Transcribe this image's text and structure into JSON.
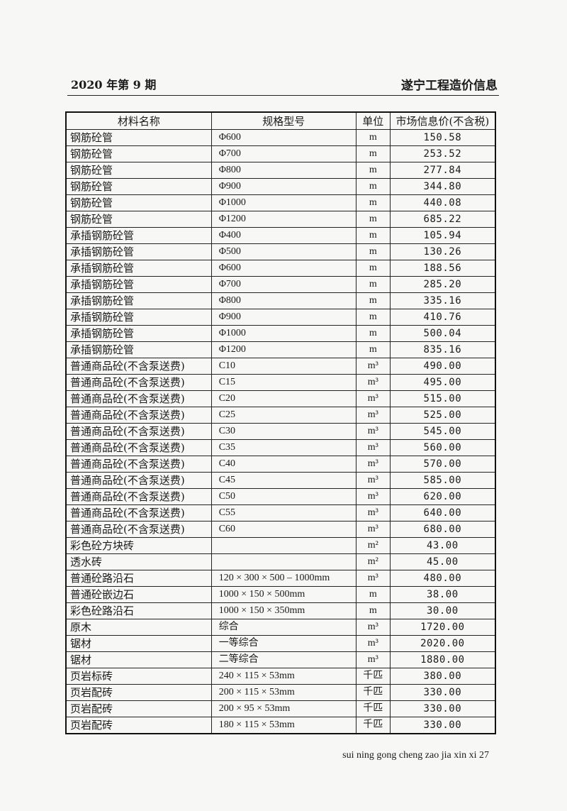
{
  "header": {
    "issue": "2020 年第 9 期",
    "publication": "遂宁工程造价信息"
  },
  "table": {
    "columns": [
      "材料名称",
      "规格型号",
      "单位",
      "市场信息价(不含税)"
    ],
    "rows": [
      [
        "钢筋砼管",
        "Φ600",
        "m",
        "150.58"
      ],
      [
        "钢筋砼管",
        "Φ700",
        "m",
        "253.52"
      ],
      [
        "钢筋砼管",
        "Φ800",
        "m",
        "277.84"
      ],
      [
        "钢筋砼管",
        "Φ900",
        "m",
        "344.80"
      ],
      [
        "钢筋砼管",
        "Φ1000",
        "m",
        "440.08"
      ],
      [
        "钢筋砼管",
        "Φ1200",
        "m",
        "685.22"
      ],
      [
        "承插钢筋砼管",
        "Φ400",
        "m",
        "105.94"
      ],
      [
        "承插钢筋砼管",
        "Φ500",
        "m",
        "130.26"
      ],
      [
        "承插钢筋砼管",
        "Φ600",
        "m",
        "188.56"
      ],
      [
        "承插钢筋砼管",
        "Φ700",
        "m",
        "285.20"
      ],
      [
        "承插钢筋砼管",
        "Φ800",
        "m",
        "335.16"
      ],
      [
        "承插钢筋砼管",
        "Φ900",
        "m",
        "410.76"
      ],
      [
        "承插钢筋砼管",
        "Φ1000",
        "m",
        "500.04"
      ],
      [
        "承插钢筋砼管",
        "Φ1200",
        "m",
        "835.16"
      ],
      [
        "普通商品砼(不含泵送费)",
        "C10",
        "m³",
        "490.00"
      ],
      [
        "普通商品砼(不含泵送费)",
        "C15",
        "m³",
        "495.00"
      ],
      [
        "普通商品砼(不含泵送费)",
        "C20",
        "m³",
        "515.00"
      ],
      [
        "普通商品砼(不含泵送费)",
        "C25",
        "m³",
        "525.00"
      ],
      [
        "普通商品砼(不含泵送费)",
        "C30",
        "m³",
        "545.00"
      ],
      [
        "普通商品砼(不含泵送费)",
        "C35",
        "m³",
        "560.00"
      ],
      [
        "普通商品砼(不含泵送费)",
        "C40",
        "m³",
        "570.00"
      ],
      [
        "普通商品砼(不含泵送费)",
        "C45",
        "m³",
        "585.00"
      ],
      [
        "普通商品砼(不含泵送费)",
        "C50",
        "m³",
        "620.00"
      ],
      [
        "普通商品砼(不含泵送费)",
        "C55",
        "m³",
        "640.00"
      ],
      [
        "普通商品砼(不含泵送费)",
        "C60",
        "m³",
        "680.00"
      ],
      [
        "彩色砼方块砖",
        "",
        "m²",
        "43.00"
      ],
      [
        "透水砖",
        "",
        "m²",
        "45.00"
      ],
      [
        "普通砼路沿石",
        "120 × 300 × 500 – 1000mm",
        "m³",
        "480.00"
      ],
      [
        "普通砼嵌边石",
        "1000 × 150 × 500mm",
        "m",
        "38.00"
      ],
      [
        "彩色砼路沿石",
        "1000 × 150 × 350mm",
        "m",
        "30.00"
      ],
      [
        "原木",
        "综合",
        "m³",
        "1720.00"
      ],
      [
        "锯材",
        "一等综合",
        "m³",
        "2020.00"
      ],
      [
        "锯材",
        "二等综合",
        "m³",
        "1880.00"
      ],
      [
        "页岩标砖",
        "240 × 115 × 53mm",
        "千匹",
        "380.00"
      ],
      [
        "页岩配砖",
        "200 × 115 × 53mm",
        "千匹",
        "330.00"
      ],
      [
        "页岩配砖",
        "200 × 95 × 53mm",
        "千匹",
        "330.00"
      ],
      [
        "页岩配砖",
        "180 × 115 × 53mm",
        "千匹",
        "330.00"
      ]
    ]
  },
  "footer": {
    "text": "sui ning gong cheng zao jia xin xi 27"
  }
}
